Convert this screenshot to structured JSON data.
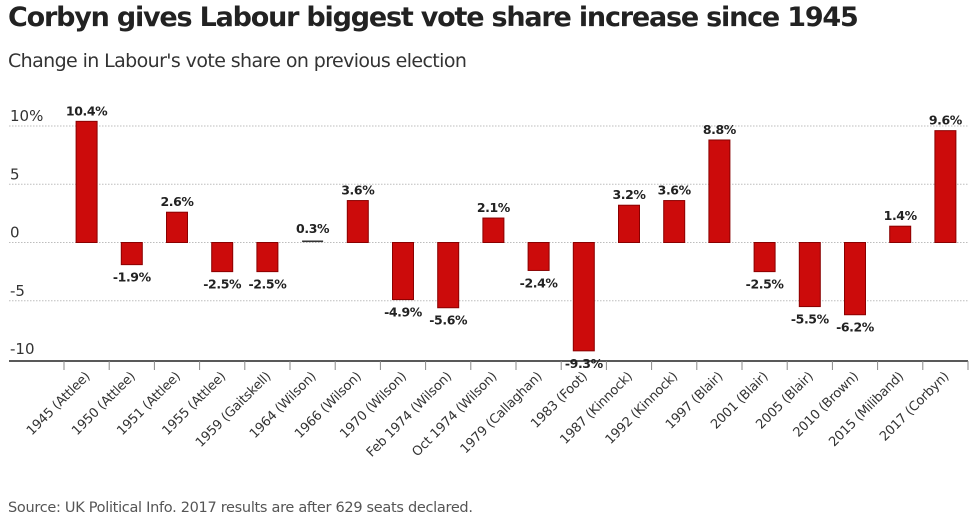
{
  "header": {
    "title": "Corbyn gives Labour biggest vote share increase since 1945",
    "subtitle": "Change in Labour's vote share on previous election"
  },
  "footer": {
    "source": "Source: UK Political Info. 2017 results are after 629 seats declared."
  },
  "colors": {
    "bar_fill": "#cc0b0b",
    "bar_stroke": "#8a0000",
    "gridline": "#bdbdbd",
    "axis": "#222222"
  },
  "chart_data": {
    "type": "bar",
    "title": "Corbyn gives Labour biggest vote share increase since 1945",
    "subtitle": "Change in Labour's vote share on previous election",
    "xlabel": "",
    "ylabel": "",
    "ylim": [
      -10,
      10
    ],
    "yticks": [
      10,
      5,
      0,
      -5,
      -10
    ],
    "ytick_labels": [
      "10%",
      "5",
      "0",
      "-5",
      "-10"
    ],
    "grid": true,
    "categories": [
      "1945 (Attlee)",
      "1950 (Attlee)",
      "1951 (Attlee)",
      "1955 (Attlee)",
      "1959 (Gaitskell)",
      "1964 (Wilson)",
      "1966 (Wilson)",
      "1970 (Wilson)",
      "Feb 1974 (Wilson)",
      "Oct 1974 (Wilson)",
      "1979 (Callaghan)",
      "1983 (Foot)",
      "1987 (Kinnock)",
      "1992 (Kinnock)",
      "1997 (Blair)",
      "2001 (Blair)",
      "2005 (Blair)",
      "2010 (Brown)",
      "2015 (Miliband)",
      "2017 (Corbyn)"
    ],
    "values": [
      10.4,
      -1.9,
      2.6,
      -2.5,
      -2.5,
      0.3,
      3.6,
      -4.9,
      -5.6,
      2.1,
      -2.4,
      -9.3,
      3.2,
      3.6,
      8.8,
      -2.5,
      -5.5,
      -6.2,
      1.4,
      9.6
    ],
    "data_labels": [
      "10.4%",
      "-1.9%",
      "2.6%",
      "-2.5%",
      "-2.5%",
      "0.3%",
      "3.6%",
      "-4.9%",
      "-5.6%",
      "2.1%",
      "-2.4%",
      "-9.3%",
      "3.2%",
      "3.6%",
      "8.8%",
      "-2.5%",
      "-5.5%",
      "-6.2%",
      "1.4%",
      "9.6%"
    ],
    "source": "Source: UK Political Info. 2017 results are after 629 seats declared."
  }
}
